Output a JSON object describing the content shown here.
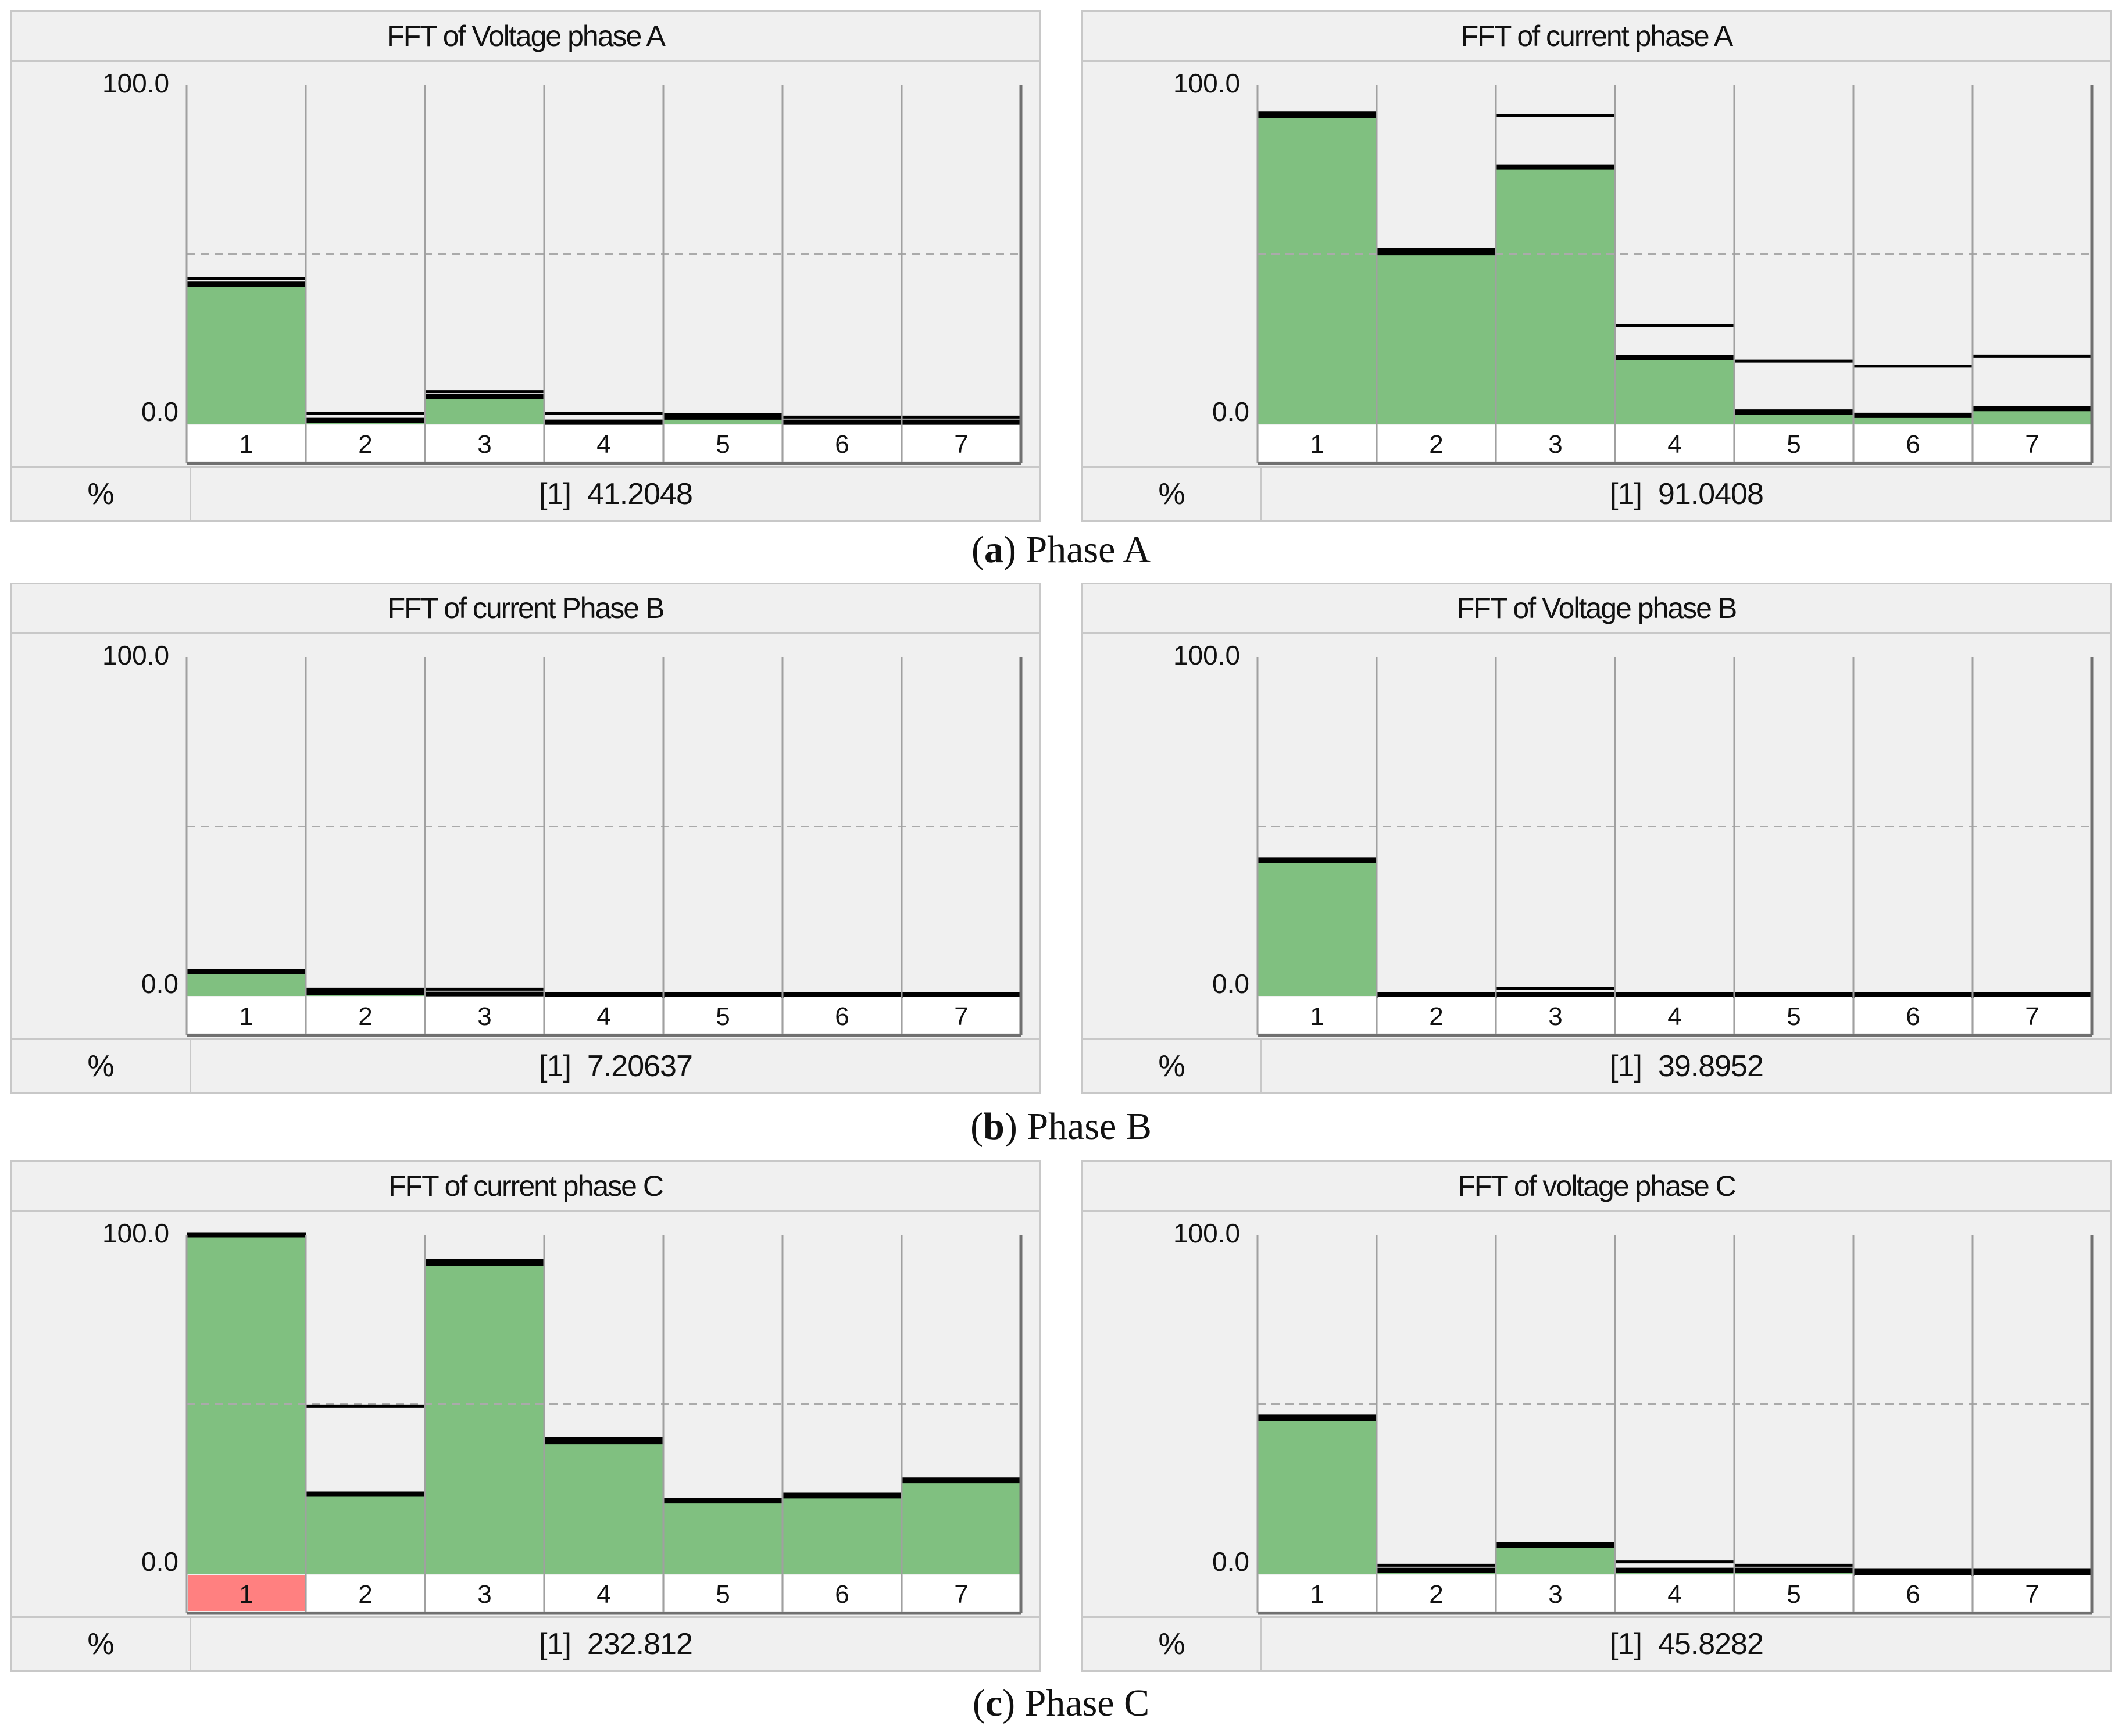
{
  "colors": {
    "bar": "#80c080",
    "bar_alert": "#ff8080",
    "panel_bg": "#f0f0f0",
    "grid": "#aaaaaa"
  },
  "captions": [
    {
      "letter": "a",
      "text": "Phase A"
    },
    {
      "letter": "b",
      "text": "Phase B"
    },
    {
      "letter": "c",
      "text": "Phase C"
    }
  ],
  "chart_data": [
    {
      "type": "bar",
      "title": "FFT of Voltage phase A",
      "categories": [
        "1",
        "2",
        "3",
        "4",
        "5",
        "6",
        "7"
      ],
      "values": [
        41.2,
        1.0,
        8.0,
        0.5,
        2.0,
        0.5,
        0.5
      ],
      "limits": [
        42.8,
        3.0,
        9.5,
        3.0,
        2.8,
        2.0,
        2.0
      ],
      "limit_dashed": 50.0,
      "ylim": [
        0,
        100
      ],
      "ytick_top": "100.0",
      "ytick_bottom": "0.0",
      "unit": "%",
      "readout_index": "[1]",
      "readout_value": "41.2048",
      "alert_bins": []
    },
    {
      "type": "bar",
      "title": "FFT of current phase A",
      "categories": [
        "1",
        "2",
        "3",
        "4",
        "5",
        "6",
        "7"
      ],
      "values": [
        91.0,
        50.5,
        75.8,
        19.5,
        3.5,
        2.5,
        4.5
      ],
      "limits": [
        91.8,
        51.5,
        91.0,
        29.0,
        18.5,
        17.0,
        20.0
      ],
      "limit_dashed": 50.0,
      "ylim": [
        0,
        100
      ],
      "ytick_top": "100.0",
      "ytick_bottom": "0.0",
      "unit": "%",
      "readout_index": "[1]",
      "readout_value": "91.0408",
      "alert_bins": []
    },
    {
      "type": "bar",
      "title": "FFT of current Phase B",
      "categories": [
        "1",
        "2",
        "3",
        "4",
        "5",
        "6",
        "7"
      ],
      "values": [
        7.2,
        1.0,
        0.5,
        0.3,
        0.3,
        0.3,
        0.3
      ],
      "limits": [
        7.5,
        2.0,
        2.0,
        0.6,
        0.6,
        0.6,
        0.6
      ],
      "limit_dashed": 50.0,
      "ylim": [
        0,
        100
      ],
      "ytick_top": "100.0",
      "ytick_bottom": "0.0",
      "unit": "%",
      "readout_index": "[1]",
      "readout_value": "7.20637",
      "alert_bins": []
    },
    {
      "type": "bar",
      "title": "FFT of Voltage phase B",
      "categories": [
        "1",
        "2",
        "3",
        "4",
        "5",
        "6",
        "7"
      ],
      "values": [
        39.9,
        0.3,
        0.3,
        0.3,
        0.3,
        0.3,
        0.3
      ],
      "limits": [
        40.5,
        0.5,
        2.2,
        0.5,
        0.5,
        0.5,
        0.5
      ],
      "limit_dashed": 50.0,
      "ylim": [
        0,
        100
      ],
      "ytick_top": "100.0",
      "ytick_bottom": "0.0",
      "unit": "%",
      "readout_index": "[1]",
      "readout_value": "39.8952",
      "alert_bins": []
    },
    {
      "type": "bar",
      "title": "FFT of current phase C",
      "categories": [
        "1",
        "2",
        "3",
        "4",
        "5",
        "6",
        "7"
      ],
      "values": [
        100.0,
        23.5,
        91.5,
        39.0,
        21.5,
        23.0,
        27.5
      ],
      "limits": [
        100.0,
        49.5,
        92.5,
        40.0,
        22.0,
        23.5,
        28.0
      ],
      "limit_dashed": 50.0,
      "ylim": [
        0,
        100
      ],
      "ytick_top": "100.0",
      "ytick_bottom": "0.0",
      "unit": "%",
      "readout_index": "[1]",
      "readout_value": "232.812",
      "alert_bins": [
        1
      ]
    },
    {
      "type": "bar",
      "title": "FFT of voltage phase C",
      "categories": [
        "1",
        "2",
        "3",
        "4",
        "5",
        "6",
        "7"
      ],
      "values": [
        45.8,
        1.0,
        8.5,
        1.0,
        1.0,
        0.3,
        0.3
      ],
      "limits": [
        46.5,
        2.5,
        9.0,
        3.5,
        2.5,
        1.2,
        1.2
      ],
      "limit_dashed": 50.0,
      "ylim": [
        0,
        100
      ],
      "ytick_top": "100.0",
      "ytick_bottom": "0.0",
      "unit": "%",
      "readout_index": "[1]",
      "readout_value": "45.8282",
      "alert_bins": []
    }
  ]
}
